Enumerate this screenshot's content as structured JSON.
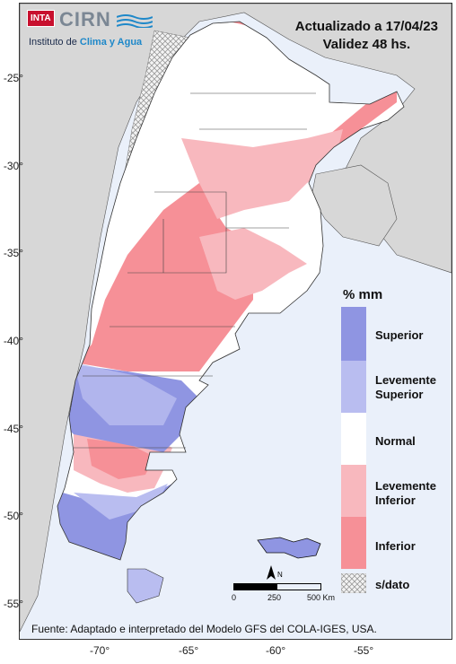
{
  "header": {
    "line1": "Actualizado a 17/04/23",
    "line2": "Validez 48 hs."
  },
  "logo": {
    "badge": "INTA",
    "name": "CIRN",
    "subtitle_prefix": "Instituto de ",
    "subtitle_highlight": "Clima y Agua"
  },
  "legend": {
    "title": "% mm",
    "items": [
      {
        "label_line1": "Superior",
        "label_line2": "",
        "color": "#8f95e2"
      },
      {
        "label_line1": "Levemente",
        "label_line2": "Superior",
        "color": "#b9bdf0"
      },
      {
        "label_line1": "Normal",
        "label_line2": "",
        "color": "#ffffff"
      },
      {
        "label_line1": "Levemente",
        "label_line2": "Inferior",
        "color": "#f8b8be"
      },
      {
        "label_line1": "Inferior",
        "label_line2": "",
        "color": "#f69097"
      }
    ],
    "nodata_label": "s/dato"
  },
  "scale": {
    "l0": "0",
    "l1": "250",
    "l2": "500 Km",
    "north": "N"
  },
  "axes": {
    "y_ticks": [
      "-25°",
      "-30°",
      "-35°",
      "-40°",
      "-45°",
      "-50°",
      "-55°"
    ],
    "x_ticks": [
      "-70°",
      "-65°",
      "-60°",
      "-55°"
    ]
  },
  "footer": "Fuente: Adaptado e interpretado del Modelo GFS del COLA-IGES, USA."
}
